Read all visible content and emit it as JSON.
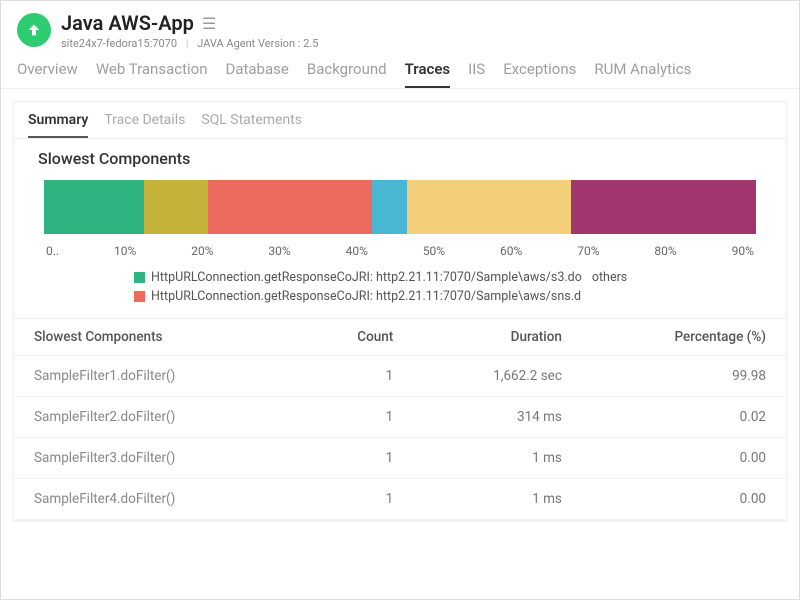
{
  "header": {
    "title": "Java AWS-App",
    "host": "site24x7-fedora15:7070",
    "agent_label": "JAVA Agent Version : 2.5"
  },
  "nav": {
    "tabs": [
      "Overview",
      "Web Transaction",
      "Database",
      "Background",
      "Traces",
      "IIS",
      "Exceptions",
      "RUM Analytics"
    ],
    "active": "Traces"
  },
  "subnav": {
    "tabs": [
      "Summary",
      "Trace Details",
      "SQL Statements"
    ],
    "active": "Summary"
  },
  "section": {
    "title": "Slowest Components"
  },
  "chart": {
    "type": "stacked-bar",
    "background_color": "#ffffff",
    "segments": [
      {
        "width_pct": 14,
        "color": "#2fb380"
      },
      {
        "width_pct": 9,
        "color": "#c4b23a"
      },
      {
        "width_pct": 23,
        "color": "#ed6a5e"
      },
      {
        "width_pct": 5,
        "color": "#4ab7d2"
      },
      {
        "width_pct": 23,
        "color": "#f3cf7a"
      },
      {
        "width_pct": 26,
        "color": "#a0376e"
      }
    ],
    "axis_ticks": [
      "0..",
      "10%",
      "20%",
      "30%",
      "40%",
      "50%",
      "60%",
      "70%",
      "80%",
      "90%"
    ]
  },
  "legend": {
    "items": [
      {
        "color": "#2fb380",
        "label": "HttpURLConnection.getResponseCoJRI: http2.21.11:7070/Sample\\aws/s3.do",
        "extra": "others"
      },
      {
        "color": "#ed6a5e",
        "label": "HttpURLConnection.getResponseCoJRI: http2.21.11:7070/Sample\\aws/sns.d",
        "extra": ""
      }
    ]
  },
  "table": {
    "columns": [
      "Slowest Components",
      "Count",
      "Duration",
      "Percentage (%)"
    ],
    "rows": [
      {
        "name": "SampleFilter1.doFilter()",
        "count": "1",
        "duration": "1,662.2 sec",
        "pct": "99.98"
      },
      {
        "name": "SampleFilter2.doFilter()",
        "count": "1",
        "duration": "314 ms",
        "pct": "0.02"
      },
      {
        "name": "SampleFilter3.doFilter()",
        "count": "1",
        "duration": "1 ms",
        "pct": "0.00"
      },
      {
        "name": "SampleFilter4.doFilter()",
        "count": "1",
        "duration": "1 ms",
        "pct": "0.00"
      }
    ]
  }
}
